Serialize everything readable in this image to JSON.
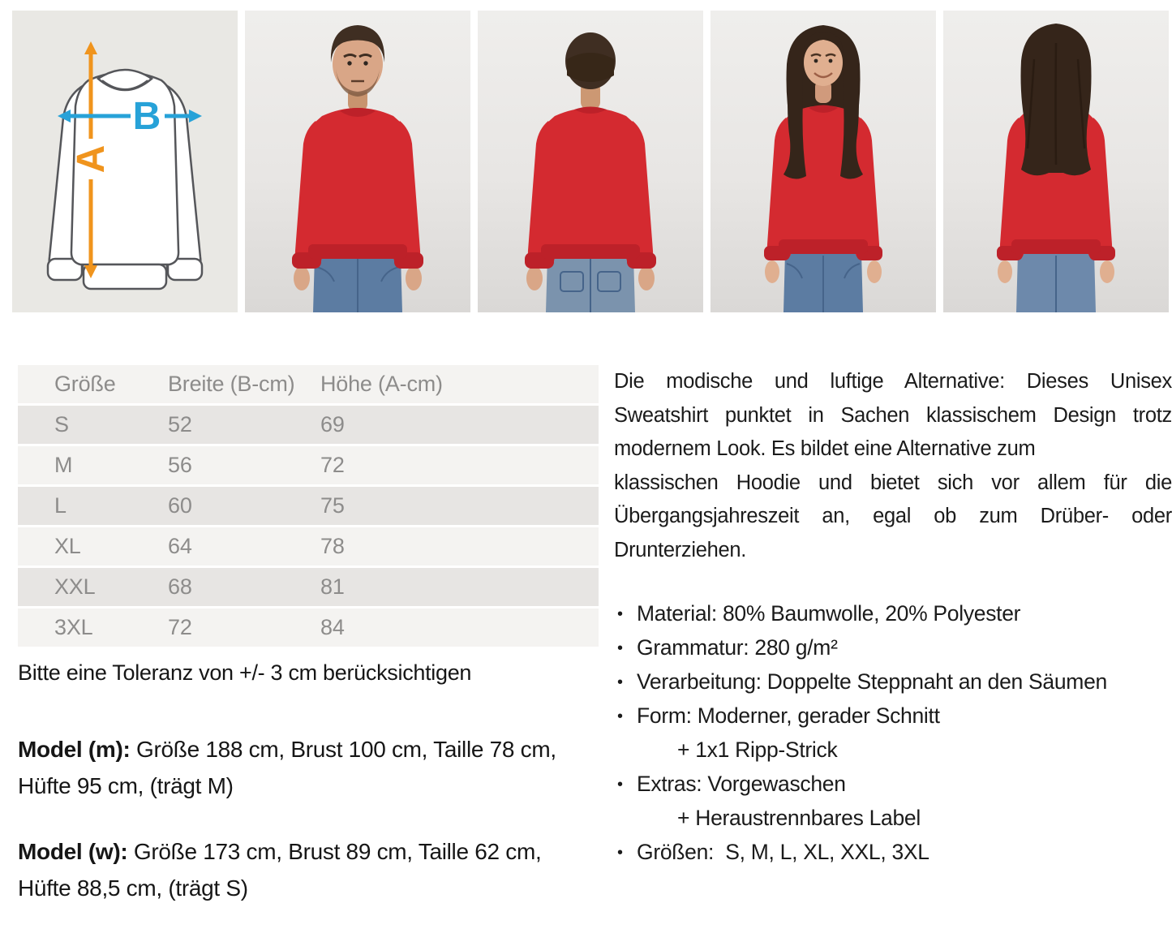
{
  "colors": {
    "sweatshirt_red": "#d42a30",
    "sweatshirt_red_dark": "#bd2129",
    "arrow_orange": "#f0941d",
    "arrow_blue": "#27a2d8",
    "jeans_blue": "#5c7ca2",
    "jeans_seam": "#46648a",
    "diagram_bg": "#e9e8e4",
    "diagram_stroke": "#55565a",
    "table_text": "#8d8c8b",
    "row_light": "#f4f3f1",
    "row_dark": "#e7e5e3"
  },
  "gallery": {
    "diagram": {
      "label_a": "A",
      "label_b": "B"
    },
    "photos": [
      {
        "name": "male-model-front"
      },
      {
        "name": "male-model-back"
      },
      {
        "name": "female-model-front"
      },
      {
        "name": "female-model-back"
      }
    ]
  },
  "size_table": {
    "headers": [
      "Größe",
      "Breite (B-cm)",
      "Höhe (A-cm)"
    ],
    "rows": [
      [
        "S",
        "52",
        "69"
      ],
      [
        "M",
        "56",
        "72"
      ],
      [
        "L",
        "60",
        "75"
      ],
      [
        "XL",
        "64",
        "78"
      ],
      [
        "XXL",
        "68",
        "81"
      ],
      [
        "3XL",
        "72",
        "84"
      ]
    ]
  },
  "tolerance_note": "Bitte eine Toleranz von +/- 3 cm berücksichtigen",
  "models": [
    {
      "label": "Model (m):",
      "lines": [
        "Größe 188 cm, Brust 100 cm, Taille 78 cm,",
        "Hüfte 95 cm, (trägt M)"
      ]
    },
    {
      "label": "Model (w):",
      "lines": [
        "Größe 173 cm, Brust 89 cm, Taille 62 cm,",
        "Hüfte 88,5 cm, (trägt S)"
      ]
    }
  ],
  "description": {
    "lines": [
      {
        "text": "Die modische und luftige Alternative: Dieses Unisex",
        "justify": true
      },
      {
        "text": "Sweatshirt punktet in Sachen klassischem Design trotz",
        "justify": true
      },
      {
        "text": "modernem Look. Es bildet eine Alternative zum",
        "justify": false
      },
      {
        "text": "klassischen Hoodie und bietet sich vor allem für die",
        "justify": true
      },
      {
        "text": "Übergangsjahreszeit an, egal ob zum Drüber- oder",
        "justify": true
      },
      {
        "text": "Drunterziehen.",
        "justify": false
      }
    ]
  },
  "features": [
    {
      "marker": "•",
      "text": "Material: 80% Baumwolle, 20% Polyester",
      "indent": false
    },
    {
      "marker": "•",
      "text": "Grammatur: 280 g/m²",
      "indent": false
    },
    {
      "marker": "•",
      "text": "Verarbeitung: Doppelte Steppnaht an den Säumen",
      "indent": false
    },
    {
      "marker": "•",
      "text": "Form: Moderner, gerader Schnitt",
      "indent": false
    },
    {
      "marker": "",
      "text": "+ 1x1 Ripp-Strick",
      "indent": true
    },
    {
      "marker": "•",
      "text": "Extras: Vorgewaschen",
      "indent": false
    },
    {
      "marker": "",
      "text": "+ Heraustrennbares Label",
      "indent": true
    },
    {
      "marker": "•",
      "text": "Größen:  S, M, L, XL, XXL, 3XL",
      "indent": false
    }
  ]
}
